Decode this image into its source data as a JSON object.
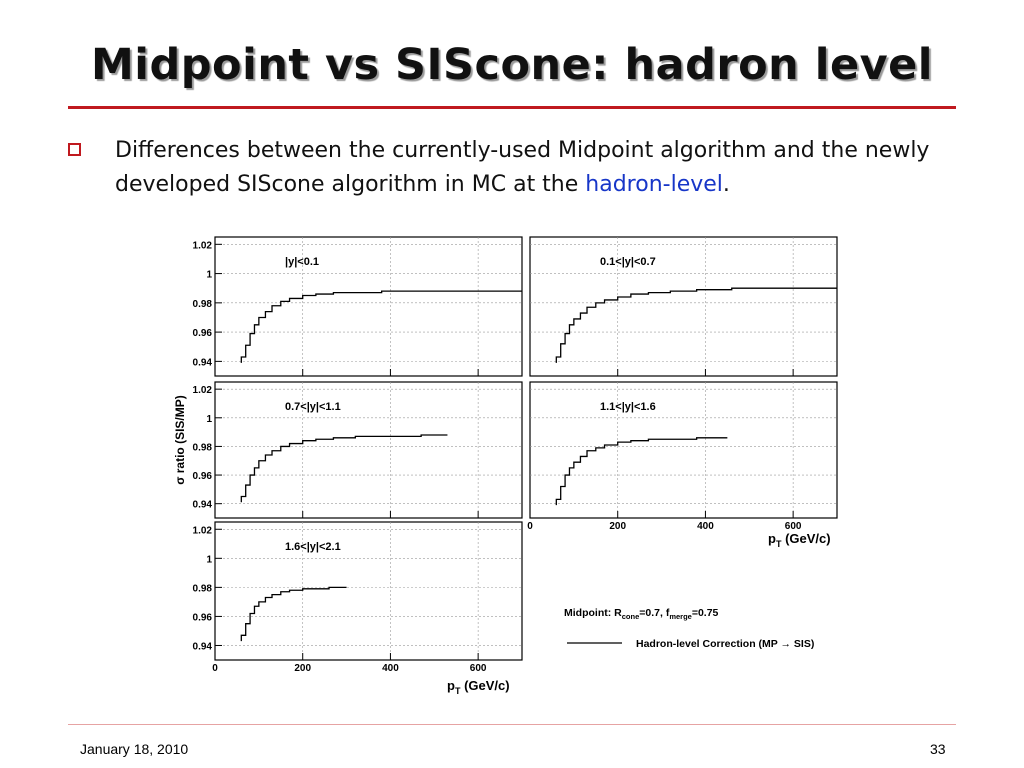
{
  "slide": {
    "title": "Midpoint vs SIScone: hadron level",
    "bullet_pre": "Differences between the currently-used Midpoint algorithm and the newly developed SIScone algorithm in MC at the ",
    "bullet_highlight": "hadron-level",
    "bullet_post": ".",
    "footer_date": "January 18, 2010",
    "page_number": "33",
    "accent_color": "#c0191f",
    "highlight_color": "#1736c8"
  },
  "chart_data": {
    "type": "line",
    "ylabel": "σ ratio (SIS/MP)",
    "xlabel": "p",
    "xlabel_sub": "T",
    "xlabel_unit": "(GeV/c)",
    "xlim": [
      0,
      700
    ],
    "ylim": [
      0.93,
      1.025
    ],
    "y_ticks": [
      0.94,
      0.96,
      0.98,
      1,
      1.02
    ],
    "y_tick_labels": [
      "0.94",
      "0.96",
      "0.98",
      "1",
      "1.02"
    ],
    "x_ticks": [
      0,
      200,
      400,
      600
    ],
    "x_tick_labels": [
      "0",
      "200",
      "400",
      "600"
    ],
    "panels": [
      {
        "label": "|y|<0.1",
        "x": [
          60,
          70,
          80,
          90,
          100,
          115,
          130,
          150,
          170,
          200,
          230,
          270,
          320,
          380,
          460,
          700
        ],
        "y": [
          0.943,
          0.951,
          0.959,
          0.965,
          0.97,
          0.974,
          0.978,
          0.981,
          0.983,
          0.985,
          0.986,
          0.987,
          0.987,
          0.988,
          0.988,
          0.988
        ]
      },
      {
        "label": "0.1<|y|<0.7",
        "x": [
          60,
          70,
          80,
          90,
          100,
          115,
          130,
          150,
          170,
          200,
          230,
          270,
          320,
          380,
          460,
          700
        ],
        "y": [
          0.943,
          0.952,
          0.959,
          0.965,
          0.969,
          0.973,
          0.977,
          0.98,
          0.982,
          0.984,
          0.986,
          0.987,
          0.988,
          0.989,
          0.99,
          0.99
        ]
      },
      {
        "label": "0.7<|y|<1.1",
        "x": [
          60,
          70,
          80,
          90,
          100,
          115,
          130,
          150,
          170,
          200,
          230,
          270,
          320,
          380,
          470,
          530
        ],
        "y": [
          0.945,
          0.953,
          0.96,
          0.965,
          0.97,
          0.974,
          0.977,
          0.98,
          0.982,
          0.984,
          0.985,
          0.986,
          0.987,
          0.987,
          0.988,
          0.988
        ]
      },
      {
        "label": "1.1<|y|<1.6",
        "x": [
          60,
          70,
          80,
          90,
          100,
          115,
          130,
          150,
          170,
          200,
          230,
          270,
          320,
          380,
          450
        ],
        "y": [
          0.943,
          0.952,
          0.96,
          0.965,
          0.969,
          0.973,
          0.977,
          0.979,
          0.981,
          0.983,
          0.984,
          0.985,
          0.985,
          0.986,
          0.986
        ]
      },
      {
        "label": "1.6<|y|<2.1",
        "x": [
          60,
          70,
          80,
          90,
          100,
          115,
          130,
          150,
          170,
          200,
          230,
          260,
          300
        ],
        "y": [
          0.947,
          0.955,
          0.962,
          0.967,
          0.97,
          0.973,
          0.975,
          0.977,
          0.978,
          0.979,
          0.979,
          0.98,
          0.98
        ]
      }
    ],
    "legend": {
      "params_prefix": "Midpoint:  R",
      "params_r_sub": "cone",
      "params_r_val": "=0.7,  f",
      "params_f_sub": "merge",
      "params_f_val": "=0.75",
      "line_label": "Hadron-level Correction (MP → SIS)"
    },
    "grid": true,
    "line_color": "#000000"
  }
}
